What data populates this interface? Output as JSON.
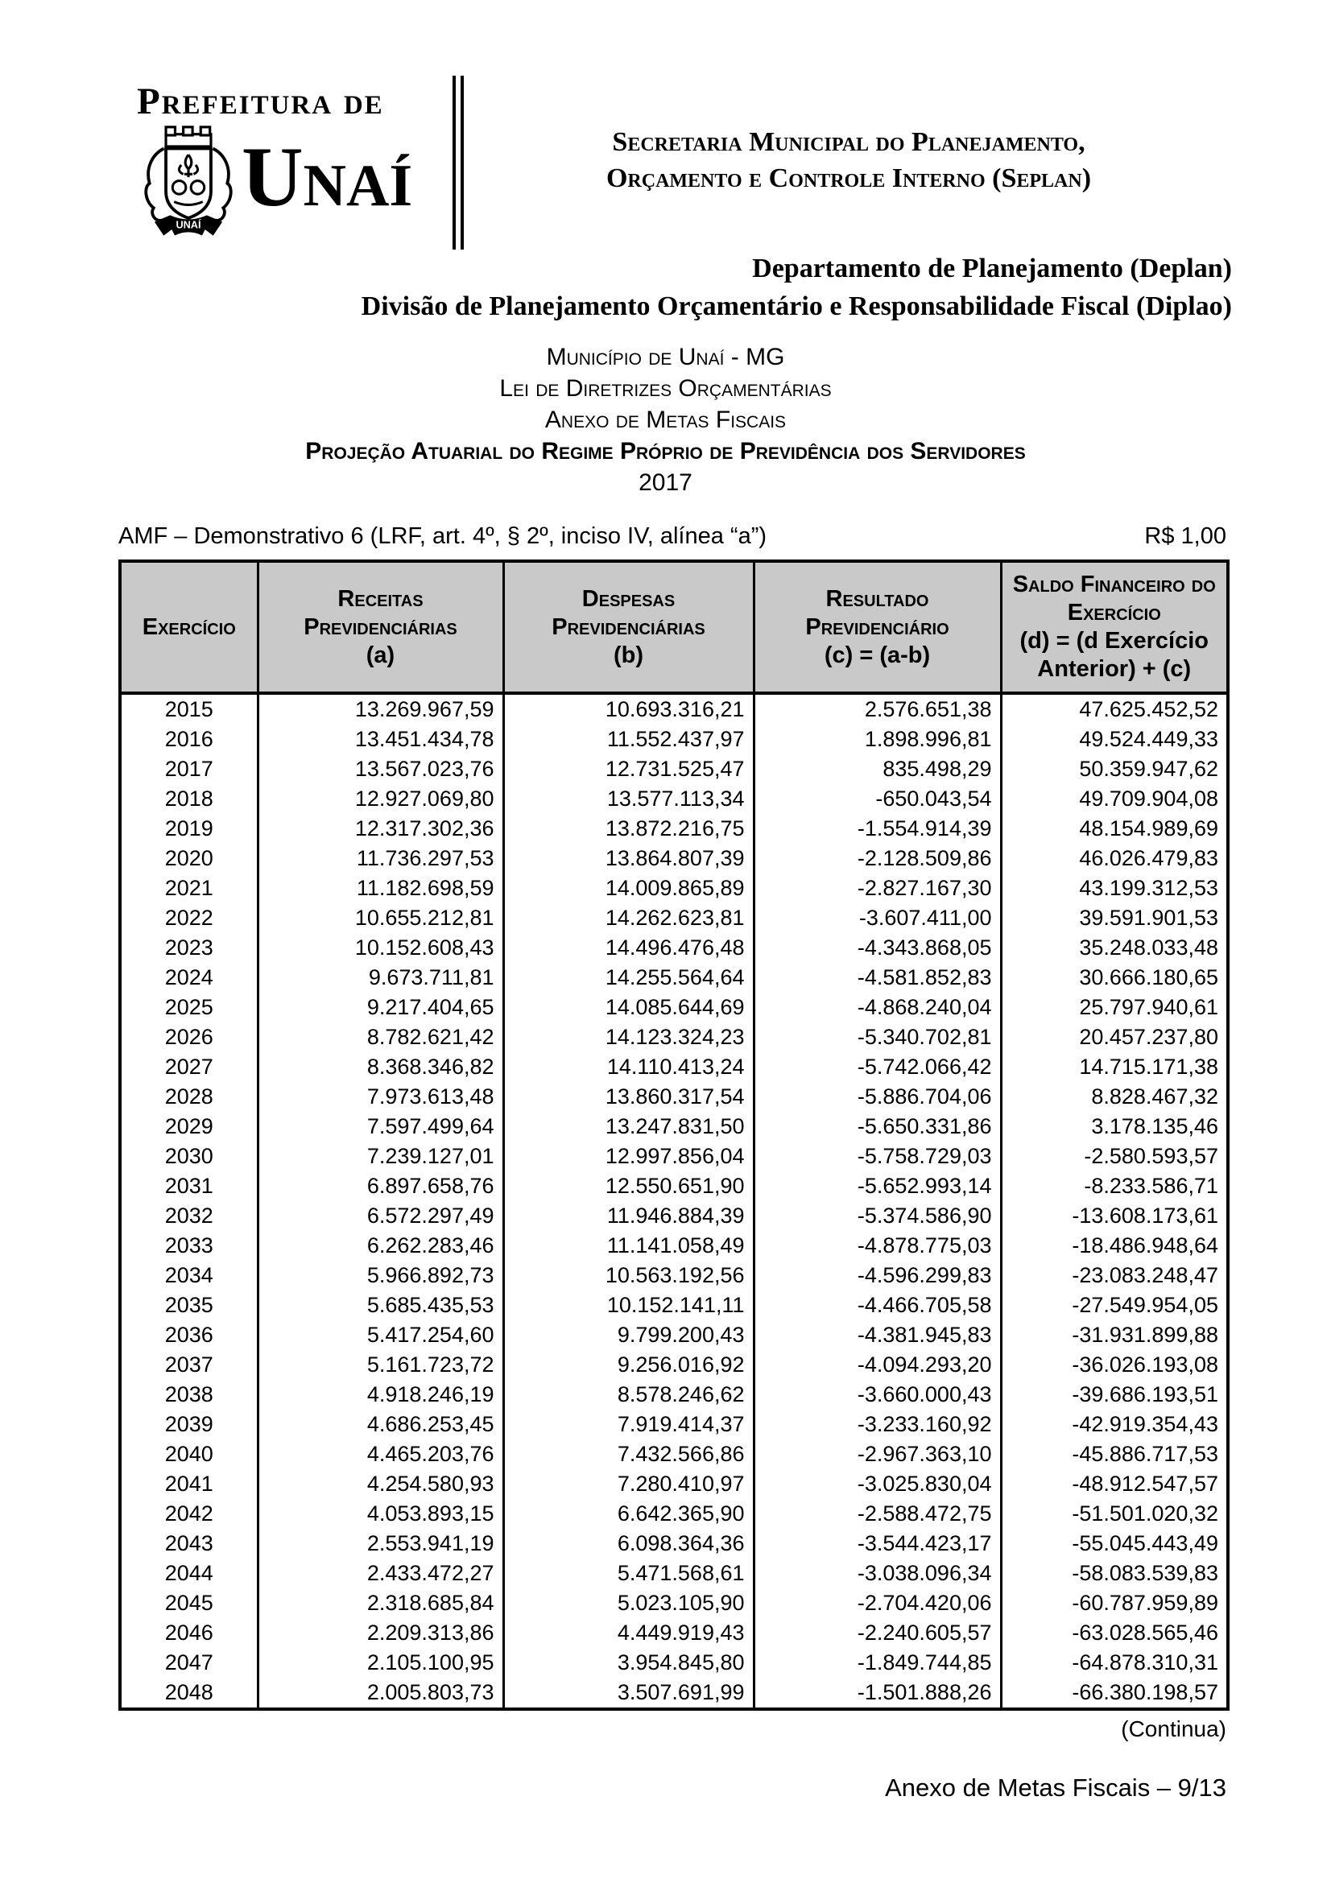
{
  "logo": {
    "prefix": "Prefeitura de",
    "city": "Unaí",
    "crest_ribbon": "UNAÍ"
  },
  "org": {
    "secretariat_line1": "Secretaria Municipal do Planejamento,",
    "secretariat_line2": "Orçamento e Controle Interno (Seplan)",
    "department": "Departamento de Planejamento (Deplan)",
    "division": "Divisão de Planejamento Orçamentário e Responsabilidade Fiscal (Diplao)"
  },
  "titles": {
    "municipality": "Município de Unaí - MG",
    "law": "Lei de Diretrizes Orçamentárias",
    "annex": "Anexo de Metas Fiscais",
    "subject": "Projeção Atuarial do Regime Próprio de Previdência dos Servidores",
    "year": "2017"
  },
  "demonstrativo": {
    "label": "AMF – Demonstrativo 6 (LRF, art. 4º, § 2º, inciso IV, alínea “a”)",
    "currency_note": "R$ 1,00"
  },
  "table": {
    "columns": [
      {
        "title": "Exercício",
        "formula": ""
      },
      {
        "title": "Receitas Previdenciárias",
        "formula": "(a)"
      },
      {
        "title": "Despesas Previdenciárias",
        "formula": "(b)"
      },
      {
        "title": "Resultado Previdenciário",
        "formula": "(c) = (a-b)"
      },
      {
        "title": "Saldo Financeiro do Exercício",
        "formula": "(d) = (d Exercício Anterior) + (c)"
      }
    ],
    "rows": [
      [
        "2015",
        "13.269.967,59",
        "10.693.316,21",
        "2.576.651,38",
        "47.625.452,52"
      ],
      [
        "2016",
        "13.451.434,78",
        "11.552.437,97",
        "1.898.996,81",
        "49.524.449,33"
      ],
      [
        "2017",
        "13.567.023,76",
        "12.731.525,47",
        "835.498,29",
        "50.359.947,62"
      ],
      [
        "2018",
        "12.927.069,80",
        "13.577.113,34",
        "-650.043,54",
        "49.709.904,08"
      ],
      [
        "2019",
        "12.317.302,36",
        "13.872.216,75",
        "-1.554.914,39",
        "48.154.989,69"
      ],
      [
        "2020",
        "11.736.297,53",
        "13.864.807,39",
        "-2.128.509,86",
        "46.026.479,83"
      ],
      [
        "2021",
        "11.182.698,59",
        "14.009.865,89",
        "-2.827.167,30",
        "43.199.312,53"
      ],
      [
        "2022",
        "10.655.212,81",
        "14.262.623,81",
        "-3.607.411,00",
        "39.591.901,53"
      ],
      [
        "2023",
        "10.152.608,43",
        "14.496.476,48",
        "-4.343.868,05",
        "35.248.033,48"
      ],
      [
        "2024",
        "9.673.711,81",
        "14.255.564,64",
        "-4.581.852,83",
        "30.666.180,65"
      ],
      [
        "2025",
        "9.217.404,65",
        "14.085.644,69",
        "-4.868.240,04",
        "25.797.940,61"
      ],
      [
        "2026",
        "8.782.621,42",
        "14.123.324,23",
        "-5.340.702,81",
        "20.457.237,80"
      ],
      [
        "2027",
        "8.368.346,82",
        "14.110.413,24",
        "-5.742.066,42",
        "14.715.171,38"
      ],
      [
        "2028",
        "7.973.613,48",
        "13.860.317,54",
        "-5.886.704,06",
        "8.828.467,32"
      ],
      [
        "2029",
        "7.597.499,64",
        "13.247.831,50",
        "-5.650.331,86",
        "3.178.135,46"
      ],
      [
        "2030",
        "7.239.127,01",
        "12.997.856,04",
        "-5.758.729,03",
        "-2.580.593,57"
      ],
      [
        "2031",
        "6.897.658,76",
        "12.550.651,90",
        "-5.652.993,14",
        "-8.233.586,71"
      ],
      [
        "2032",
        "6.572.297,49",
        "11.946.884,39",
        "-5.374.586,90",
        "-13.608.173,61"
      ],
      [
        "2033",
        "6.262.283,46",
        "11.141.058,49",
        "-4.878.775,03",
        "-18.486.948,64"
      ],
      [
        "2034",
        "5.966.892,73",
        "10.563.192,56",
        "-4.596.299,83",
        "-23.083.248,47"
      ],
      [
        "2035",
        "5.685.435,53",
        "10.152.141,11",
        "-4.466.705,58",
        "-27.549.954,05"
      ],
      [
        "2036",
        "5.417.254,60",
        "9.799.200,43",
        "-4.381.945,83",
        "-31.931.899,88"
      ],
      [
        "2037",
        "5.161.723,72",
        "9.256.016,92",
        "-4.094.293,20",
        "-36.026.193,08"
      ],
      [
        "2038",
        "4.918.246,19",
        "8.578.246,62",
        "-3.660.000,43",
        "-39.686.193,51"
      ],
      [
        "2039",
        "4.686.253,45",
        "7.919.414,37",
        "-3.233.160,92",
        "-42.919.354,43"
      ],
      [
        "2040",
        "4.465.203,76",
        "7.432.566,86",
        "-2.967.363,10",
        "-45.886.717,53"
      ],
      [
        "2041",
        "4.254.580,93",
        "7.280.410,97",
        "-3.025.830,04",
        "-48.912.547,57"
      ],
      [
        "2042",
        "4.053.893,15",
        "6.642.365,90",
        "-2.588.472,75",
        "-51.501.020,32"
      ],
      [
        "2043",
        "2.553.941,19",
        "6.098.364,36",
        "-3.544.423,17",
        "-55.045.443,49"
      ],
      [
        "2044",
        "2.433.472,27",
        "5.471.568,61",
        "-3.038.096,34",
        "-58.083.539,83"
      ],
      [
        "2045",
        "2.318.685,84",
        "5.023.105,90",
        "-2.704.420,06",
        "-60.787.959,89"
      ],
      [
        "2046",
        "2.209.313,86",
        "4.449.919,43",
        "-2.240.605,57",
        "-63.028.565,46"
      ],
      [
        "2047",
        "2.105.100,95",
        "3.954.845,80",
        "-1.849.744,85",
        "-64.878.310,31"
      ],
      [
        "2048",
        "2.005.803,73",
        "3.507.691,99",
        "-1.501.888,26",
        "-66.380.198,57"
      ]
    ]
  },
  "footer": {
    "continua": "(Continua)",
    "page_label": "Anexo de Metas Fiscais – 9/13"
  }
}
